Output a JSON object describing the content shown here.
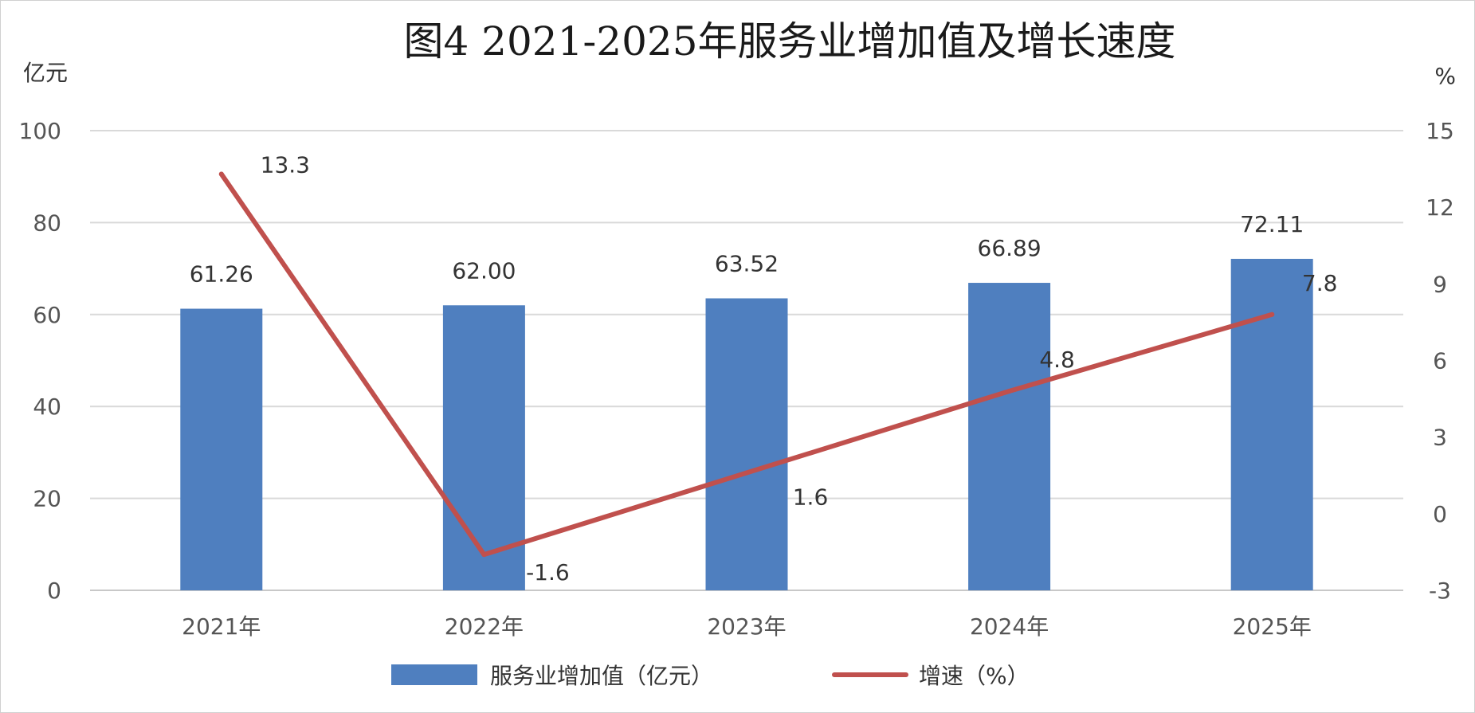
{
  "chart_data": {
    "type": "bar",
    "title": "图4 2021-2025年服务业增加值及增长速度",
    "categories": [
      "2021年",
      "2022年",
      "2023年",
      "2024年",
      "2025年"
    ],
    "left_axis": {
      "unit": "亿元",
      "ylim": [
        0,
        100
      ],
      "ticks": [
        0,
        20,
        40,
        60,
        80,
        100
      ]
    },
    "right_axis": {
      "unit": "%",
      "ylim": [
        -3,
        15
      ],
      "ticks": [
        -3,
        0,
        3,
        6,
        9,
        12,
        15
      ]
    },
    "series": [
      {
        "name": "服务业增加值（亿元）",
        "type": "bar",
        "axis": "left",
        "color": "#4f7fbf",
        "values": [
          61.26,
          62.0,
          63.52,
          66.89,
          72.11
        ],
        "labels": [
          "61.26",
          "62.00",
          "63.52",
          "66.89",
          "72.11"
        ]
      },
      {
        "name": "增速（%）",
        "type": "line",
        "axis": "right",
        "color": "#c0504d",
        "values": [
          13.3,
          -1.6,
          1.6,
          4.8,
          7.8
        ],
        "labels": [
          "13.3",
          "-1.6",
          "1.6",
          "4.8",
          "7.8"
        ]
      }
    ],
    "grid": true,
    "legend": "bottom"
  }
}
